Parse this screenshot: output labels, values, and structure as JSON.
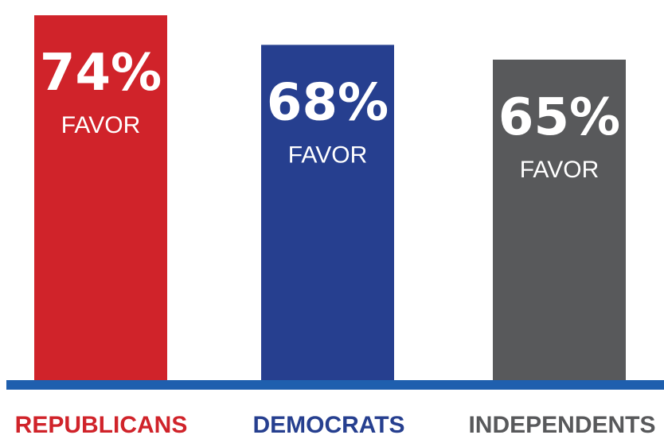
{
  "chart_data": {
    "type": "bar",
    "categories": [
      "REPUBLICANS",
      "DEMOCRATS",
      "INDEPENDENTS"
    ],
    "values": [
      74,
      68,
      65
    ],
    "value_labels": [
      "74%",
      "68%",
      "65%"
    ],
    "bar_sublabel": "FAVOR",
    "colors": [
      "#d0232a",
      "#263f8f",
      "#58595b"
    ],
    "category_label_colors": [
      "#d0232a",
      "#263f8f",
      "#58595b"
    ],
    "baseline_color": "#1f5fae",
    "title": "",
    "xlabel": "",
    "ylabel": "",
    "grid": false,
    "legend": "none"
  }
}
